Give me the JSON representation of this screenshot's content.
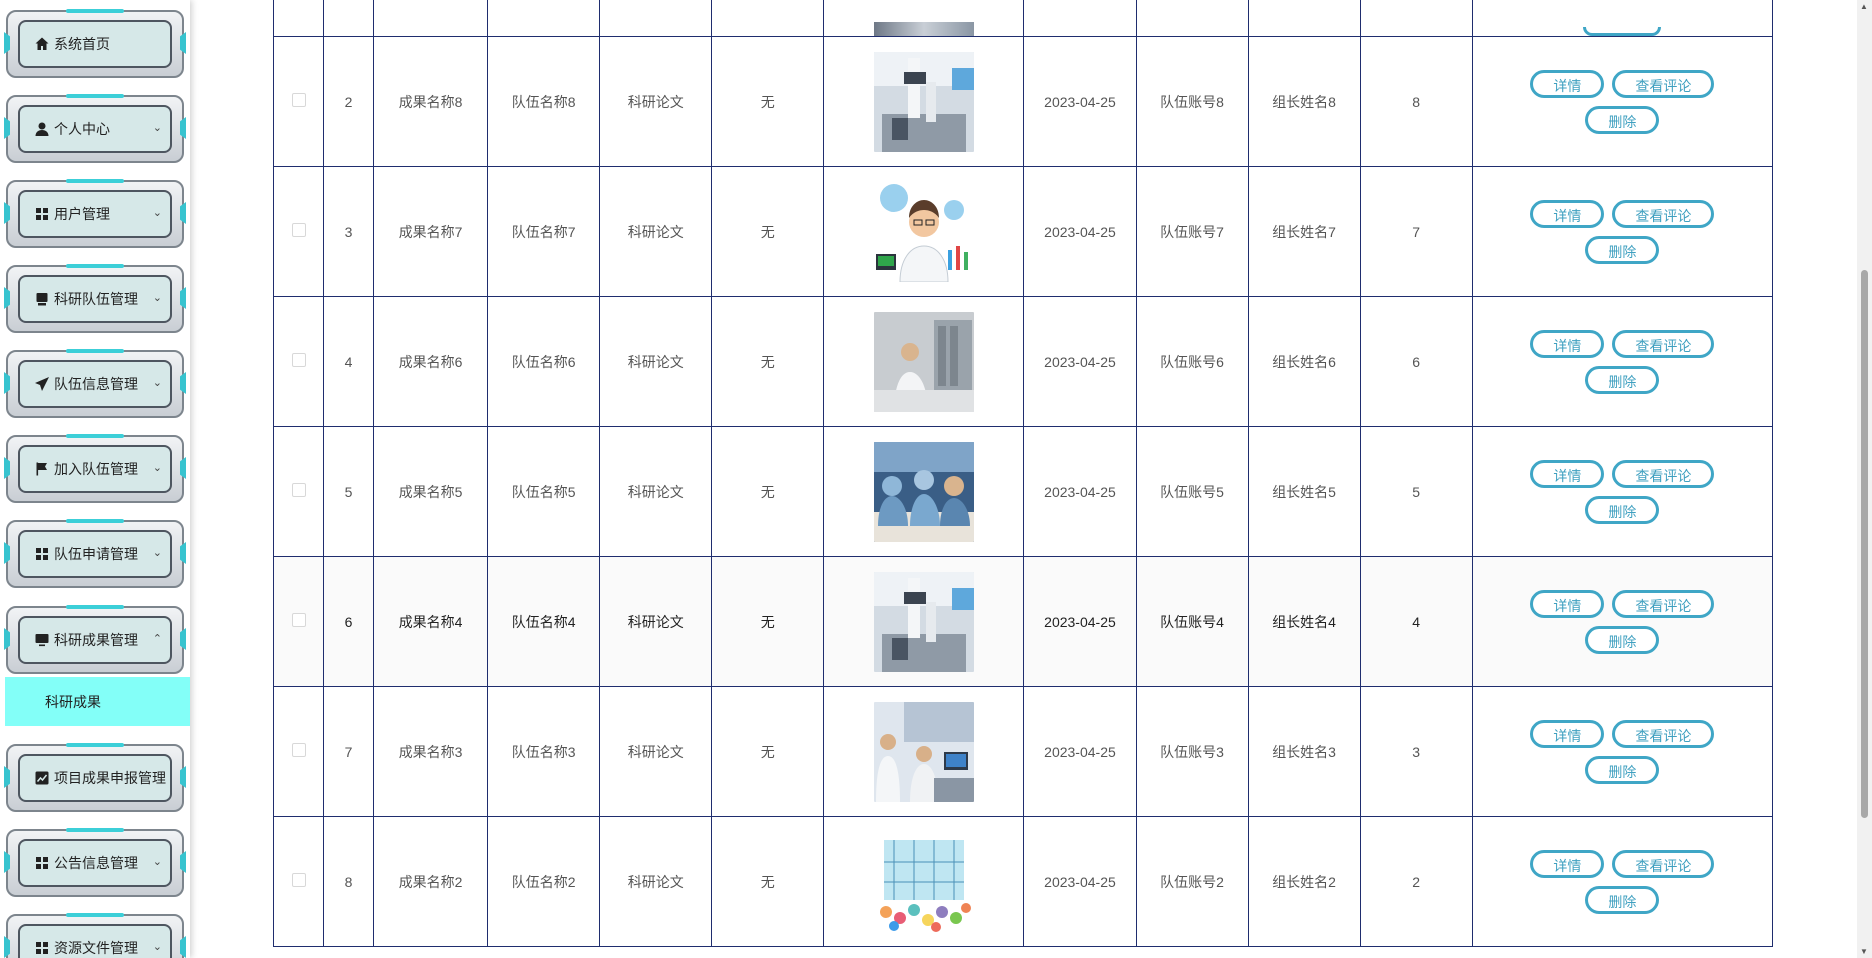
{
  "sidebar": {
    "items": [
      {
        "label": "系统首页",
        "icon": "home-icon",
        "expandable": false
      },
      {
        "label": "个人中心",
        "icon": "user-icon",
        "expandable": true
      },
      {
        "label": "用户管理",
        "icon": "grid-icon",
        "expandable": true
      },
      {
        "label": "科研队伍管理",
        "icon": "box-icon",
        "expandable": true
      },
      {
        "label": "队伍信息管理",
        "icon": "send-icon",
        "expandable": true
      },
      {
        "label": "加入队伍管理",
        "icon": "flag-icon",
        "expandable": true
      },
      {
        "label": "队伍申请管理",
        "icon": "grid-icon",
        "expandable": true
      },
      {
        "label": "科研成果管理",
        "icon": "monitor-icon",
        "expandable": true,
        "expanded": true
      },
      {
        "label": "项目成果申报管理",
        "icon": "chart-icon",
        "expandable": false
      },
      {
        "label": "公告信息管理",
        "icon": "grid-icon",
        "expandable": true
      },
      {
        "label": "资源文件管理",
        "icon": "grid-icon",
        "expandable": true
      }
    ],
    "submenu": {
      "label": "科研成果"
    }
  },
  "table": {
    "rows": [
      {
        "index": "2",
        "name": "成果名称8",
        "team": "队伍名称8",
        "type": "科研论文",
        "extra": "无",
        "image": "lab-robot-image",
        "date": "2023-04-25",
        "account": "队伍账号8",
        "leader": "组长姓名8",
        "count": "8"
      },
      {
        "index": "3",
        "name": "成果名称7",
        "team": "队伍名称7",
        "type": "科研论文",
        "extra": "无",
        "image": "scientist-cartoon-image",
        "date": "2023-04-25",
        "account": "队伍账号7",
        "leader": "组长姓名7",
        "count": "7"
      },
      {
        "index": "4",
        "name": "成果名称6",
        "team": "队伍名称6",
        "type": "科研论文",
        "extra": "无",
        "image": "lab-worker-image",
        "date": "2023-04-25",
        "account": "队伍账号6",
        "leader": "组长姓名6",
        "count": "6"
      },
      {
        "index": "5",
        "name": "成果名称5",
        "team": "队伍名称5",
        "type": "科研论文",
        "extra": "无",
        "image": "lab-team-image",
        "date": "2023-04-25",
        "account": "队伍账号5",
        "leader": "组长姓名5",
        "count": "5"
      },
      {
        "index": "6",
        "name": "成果名称4",
        "team": "队伍名称4",
        "type": "科研论文",
        "extra": "无",
        "image": "lab-robot-image",
        "date": "2023-04-25",
        "account": "队伍账号4",
        "leader": "组长姓名4",
        "count": "4"
      },
      {
        "index": "7",
        "name": "成果名称3",
        "team": "队伍名称3",
        "type": "科研论文",
        "extra": "无",
        "image": "computer-lab-image",
        "date": "2023-04-25",
        "account": "队伍账号3",
        "leader": "组长姓名3",
        "count": "3"
      },
      {
        "index": "8",
        "name": "成果名称2",
        "team": "队伍名称2",
        "type": "科研论文",
        "extra": "无",
        "image": "colorful-crowd-image",
        "date": "2023-04-25",
        "account": "队伍账号2",
        "leader": "组长姓名2",
        "count": "2"
      }
    ],
    "actions": {
      "detail": "详情",
      "comments": "查看评论",
      "delete": "删除"
    }
  },
  "colors": {
    "accent": "#3fa6c6",
    "submenu_bg": "#83fff8",
    "grid": "#1f2d6e"
  }
}
